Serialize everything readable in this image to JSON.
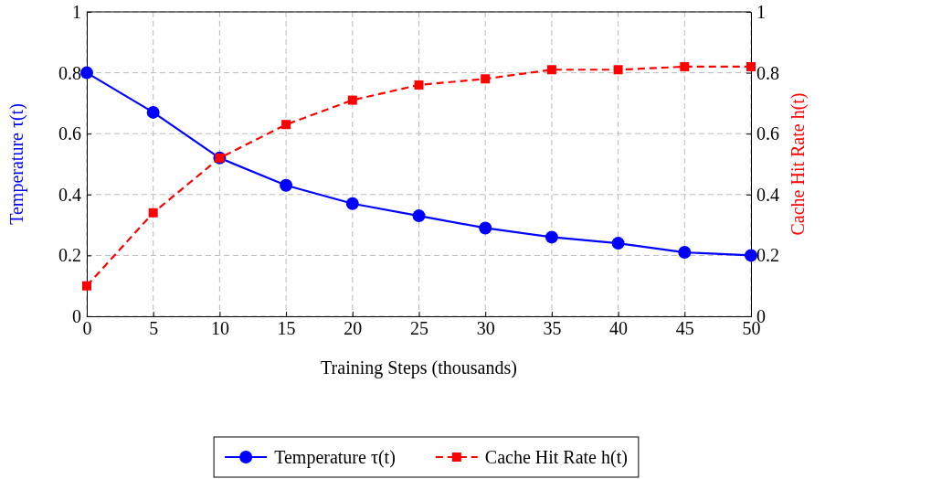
{
  "chart_data": {
    "type": "line",
    "xlabel": "Training Steps (thousands)",
    "ylabel": "Temperature τ(t)",
    "y2label": "Cache Hit Rate h(t)",
    "x": [
      0,
      5,
      10,
      15,
      20,
      25,
      30,
      35,
      40,
      45,
      50
    ],
    "series": [
      {
        "name": "Temperature τ(t)",
        "color": "#0000ff",
        "marker": "circle",
        "line_style": "solid",
        "values": [
          0.8,
          0.67,
          0.52,
          0.43,
          0.37,
          0.33,
          0.29,
          0.26,
          0.24,
          0.21,
          0.2
        ]
      },
      {
        "name": "Cache Hit Rate h(t)",
        "color": "#ff0000",
        "marker": "square",
        "line_style": "dashed",
        "axis": "y2",
        "values": [
          0.1,
          0.34,
          0.52,
          0.63,
          0.71,
          0.76,
          0.78,
          0.81,
          0.81,
          0.82,
          0.82
        ]
      }
    ],
    "xlim": [
      0,
      50
    ],
    "xticks": [
      0,
      5,
      10,
      15,
      20,
      25,
      30,
      35,
      40,
      45,
      50
    ],
    "ylim": [
      0,
      1
    ],
    "yticks": [
      0,
      0.2,
      0.4,
      0.6,
      0.8,
      1
    ],
    "y2lim": [
      0,
      1
    ],
    "y2ticks": [
      0,
      0.2,
      0.4,
      0.6,
      0.8,
      1
    ],
    "grid": true,
    "legend": "bottom"
  }
}
